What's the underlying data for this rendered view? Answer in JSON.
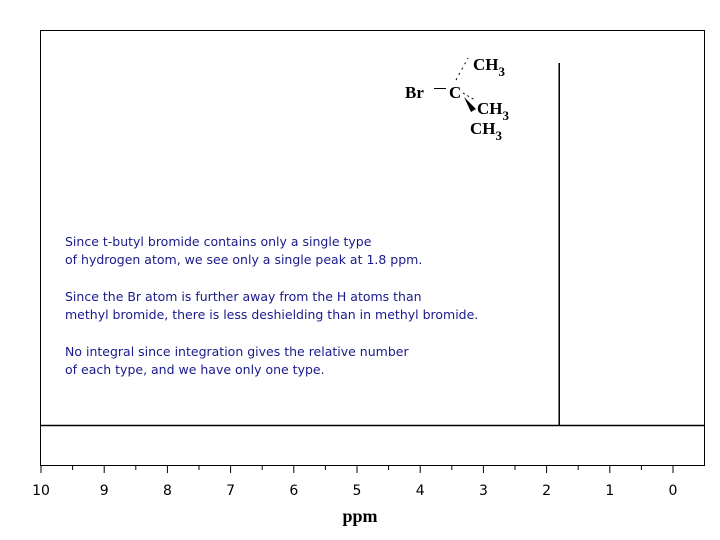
{
  "chart_data": {
    "type": "spectrum",
    "x_label": "ppm",
    "xlim": [
      10,
      0
    ],
    "xticks": [
      10,
      9,
      8,
      7,
      6,
      5,
      4,
      3,
      2,
      1,
      0
    ],
    "xticks_minor": [
      9.5,
      8.5,
      7.5,
      6.5,
      5.5,
      4.5,
      3.5,
      2.5,
      1.5,
      0.5
    ],
    "peaks": [
      1.8
    ],
    "color": "#000000",
    "annotations": [
      "Since t-butyl bromide contains only a single type",
      "of hydrogen atom, we see only a single peak at 1.8 ppm.",
      "Since the Br atom is further away from the H atoms than",
      "methyl bromide, there is less deshielding than in methyl bromide.",
      "No integral since integration gives the relative number",
      "of each type, and we have only one type."
    ],
    "structure": {
      "atoms": [
        "Br",
        "C",
        "CH3",
        "CH3",
        "CH3"
      ]
    }
  }
}
